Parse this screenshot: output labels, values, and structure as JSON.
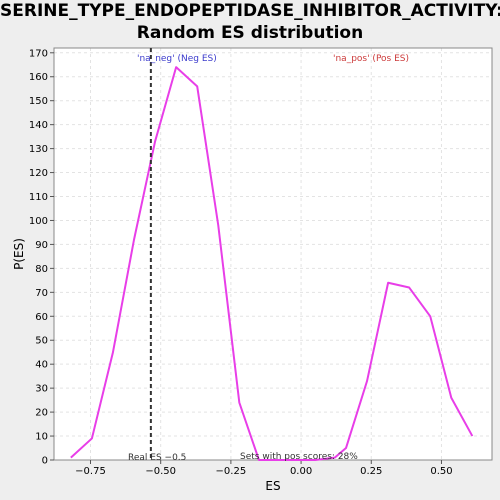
{
  "title_line1": "SERINE_TYPE_ENDOPEPTIDASE_INHIBITOR_ACTIVITY:",
  "title_line2": "Random ES distribution",
  "colors": {
    "background": "#eeeeee",
    "plot_background": "#ffffff",
    "line": "#e83ee8",
    "neg_label": "#3b3bcc",
    "pos_label": "#cc3b3b",
    "grid": "#e3e3e3",
    "real_es_line": "#333333"
  },
  "chart_data": {
    "type": "line",
    "title": "SERINE_TYPE_ENDOPEPTIDASE_INHIBITOR_ACTIVITY: Random ES distribution",
    "xlabel": "ES",
    "ylabel": "P(ES)",
    "xlim": [
      -0.88,
      0.68
    ],
    "ylim": [
      0,
      172
    ],
    "grid": true,
    "x_ticks": [
      -0.75,
      -0.5,
      -0.25,
      0.0,
      0.25,
      0.5
    ],
    "x_tick_labels": [
      "−0.75",
      "−0.50",
      "−0.25",
      "0.00",
      "0.25",
      "0.50"
    ],
    "y_ticks": [
      0,
      10,
      20,
      30,
      40,
      50,
      60,
      70,
      80,
      90,
      100,
      110,
      120,
      130,
      140,
      150,
      160,
      170
    ],
    "series": [
      {
        "x": [
          -0.82,
          -0.745,
          -0.67,
          -0.595,
          -0.52,
          -0.445,
          -0.37,
          -0.295,
          -0.22,
          -0.15,
          -0.09,
          -0.02,
          0.05,
          0.12,
          0.16,
          0.235,
          0.31,
          0.385,
          0.46,
          0.535,
          0.61
        ],
        "y": [
          1,
          9,
          45,
          92,
          133,
          164,
          156,
          98,
          24,
          0,
          0,
          0,
          0,
          1,
          5,
          33,
          74,
          72,
          60,
          26,
          10
        ]
      }
    ],
    "annotations": {
      "neg_label": "'na_neg' (Neg ES)",
      "pos_label": "'na_pos' (Pos ES)",
      "real_es_label": "Real ES −0.5",
      "real_es_value": -0.535,
      "pos_scores_label": "Sets with pos scores: 28%"
    }
  }
}
